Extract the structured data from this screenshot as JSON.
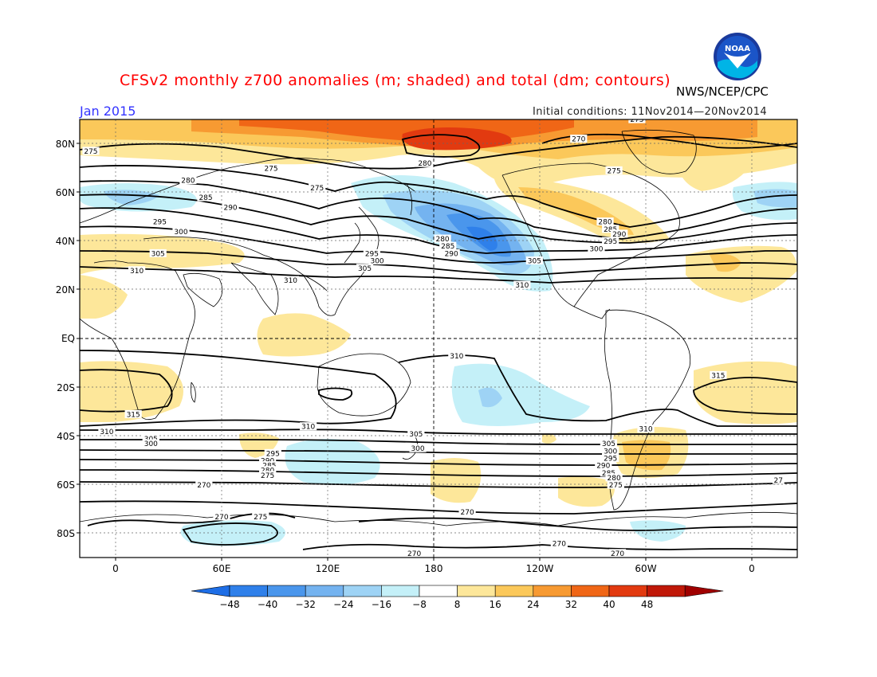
{
  "title": "CFSv2 monthly z700 anomalies (m; shaded) and total (dm; contours)",
  "agency": "NWS/NCEP/CPC",
  "period": "Jan 2015",
  "initial_conditions": "Initial conditions: 11Nov2014—20Nov2014",
  "logo_text": "NOAA",
  "lat_labels": [
    "80N",
    "60N",
    "40N",
    "20N",
    "EQ",
    "20S",
    "40S",
    "60S",
    "80S"
  ],
  "lon_labels": [
    "0",
    "60E",
    "120E",
    "180",
    "120W",
    "60W",
    "0"
  ],
  "legend": {
    "values": [
      "-48",
      "-40",
      "-32",
      "-24",
      "-16",
      "-8",
      "8",
      "16",
      "24",
      "32",
      "40",
      "48"
    ],
    "colors": [
      "#1e6ee6",
      "#2f80ea",
      "#4a96ec",
      "#74b3f0",
      "#9ed3f5",
      "#c4f0f8",
      "#ffffff",
      "#fde79a",
      "#fbc85a",
      "#f79a32",
      "#f06616",
      "#e23a10",
      "#c01808",
      "#a00000"
    ]
  },
  "contour_labels": [
    {
      "v": "275",
      "lon": -14,
      "lat": 77
    },
    {
      "v": "275",
      "lon": 88,
      "lat": 70
    },
    {
      "v": "280",
      "lon": 41,
      "lat": 65
    },
    {
      "v": "285",
      "lon": 51,
      "lat": 58
    },
    {
      "v": "290",
      "lon": 65,
      "lat": 54
    },
    {
      "v": "295",
      "lon": 25,
      "lat": 48
    },
    {
      "v": "300",
      "lon": 37,
      "lat": 44
    },
    {
      "v": "305",
      "lon": 24,
      "lat": 35
    },
    {
      "v": "310",
      "lon": 12,
      "lat": 28
    },
    {
      "v": "275",
      "lon": 114,
      "lat": 62
    },
    {
      "v": "280",
      "lon": 175,
      "lat": 72
    },
    {
      "v": "280",
      "lon": 185,
      "lat": 41
    },
    {
      "v": "285",
      "lon": 188,
      "lat": 38
    },
    {
      "v": "290",
      "lon": 190,
      "lat": 35
    },
    {
      "v": "295",
      "lon": 145,
      "lat": 35
    },
    {
      "v": "300",
      "lon": 148,
      "lat": 32
    },
    {
      "v": "305",
      "lon": 141,
      "lat": 29
    },
    {
      "v": "310",
      "lon": 99,
      "lat": 24
    },
    {
      "v": "305",
      "lon": 237,
      "lat": 32
    },
    {
      "v": "310",
      "lon": 230,
      "lat": 22
    },
    {
      "v": "270",
      "lon": 262,
      "lat": 82
    },
    {
      "v": "275",
      "lon": 282,
      "lat": 69
    },
    {
      "v": "280",
      "lon": 277,
      "lat": 48
    },
    {
      "v": "285",
      "lon": 280,
      "lat": 45
    },
    {
      "v": "290",
      "lon": 285,
      "lat": 43
    },
    {
      "v": "295",
      "lon": 280,
      "lat": 40
    },
    {
      "v": "300",
      "lon": 272,
      "lat": 37
    },
    {
      "v": "275",
      "lon": 295,
      "lat": 90
    },
    {
      "v": "310",
      "lon": 193,
      "lat": -7
    },
    {
      "v": "315",
      "lon": 341,
      "lat": -15
    },
    {
      "v": "315",
      "lon": 10,
      "lat": -31
    },
    {
      "v": "310",
      "lon": -5,
      "lat": -38
    },
    {
      "v": "305",
      "lon": 20,
      "lat": -41
    },
    {
      "v": "300",
      "lon": 20,
      "lat": -43
    },
    {
      "v": "310",
      "lon": 109,
      "lat": -36
    },
    {
      "v": "305",
      "lon": 170,
      "lat": -39
    },
    {
      "v": "300",
      "lon": 171,
      "lat": -45
    },
    {
      "v": "295",
      "lon": 89,
      "lat": -47
    },
    {
      "v": "290",
      "lon": 86,
      "lat": -50
    },
    {
      "v": "285",
      "lon": 87,
      "lat": -52
    },
    {
      "v": "280",
      "lon": 86,
      "lat": -54
    },
    {
      "v": "275",
      "lon": 86,
      "lat": -56
    },
    {
      "v": "270",
      "lon": 50,
      "lat": -60
    },
    {
      "v": "270",
      "lon": 60,
      "lat": -73
    },
    {
      "v": "275",
      "lon": 82,
      "lat": -73
    },
    {
      "v": "270",
      "lon": 199,
      "lat": -71
    },
    {
      "v": "270",
      "lon": 169,
      "lat": -88
    },
    {
      "v": "270",
      "lon": 251,
      "lat": -84
    },
    {
      "v": "270",
      "lon": 284,
      "lat": -88
    },
    {
      "v": "310",
      "lon": 300,
      "lat": -37
    },
    {
      "v": "305",
      "lon": 279,
      "lat": -43
    },
    {
      "v": "300",
      "lon": 280,
      "lat": -46
    },
    {
      "v": "295",
      "lon": 280,
      "lat": -49
    },
    {
      "v": "290",
      "lon": 276,
      "lat": -52
    },
    {
      "v": "285",
      "lon": 279,
      "lat": -55
    },
    {
      "v": "280",
      "lon": 282,
      "lat": -57
    },
    {
      "v": "275",
      "lon": 283,
      "lat": -60
    },
    {
      "v": "27",
      "lon": 375,
      "lat": -58
    }
  ]
}
